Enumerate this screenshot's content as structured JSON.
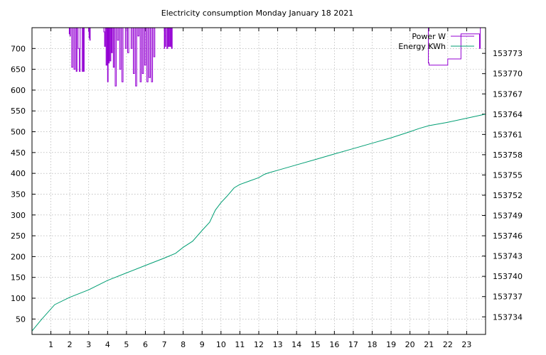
{
  "chart_data": {
    "type": "line",
    "title": "Electricity consumption Monday January 18 2021",
    "grid": true,
    "legend_position": "top-right",
    "x_axis": {
      "range": [
        0,
        24
      ],
      "ticks": [
        1,
        2,
        3,
        4,
        5,
        6,
        7,
        8,
        9,
        10,
        11,
        12,
        13,
        14,
        15,
        16,
        17,
        18,
        19,
        20,
        21,
        22,
        23
      ]
    },
    "y_left": {
      "range": [
        13,
        750
      ],
      "ticks": [
        50,
        100,
        150,
        200,
        250,
        300,
        350,
        400,
        450,
        500,
        550,
        600,
        650,
        700
      ]
    },
    "y_right": {
      "range": [
        153731.4,
        153776.8
      ],
      "ticks": [
        153734,
        153737,
        153740,
        153743,
        153746,
        153749,
        153752,
        153755,
        153758,
        153761,
        153764,
        153767,
        153770,
        153773
      ]
    },
    "series": [
      {
        "name": "Power W",
        "color": "#9400d3",
        "axis": "left",
        "x": [
          0.0,
          1.96,
          1.97,
          2.0,
          2.01,
          2.03,
          2.04,
          2.1,
          2.16,
          2.22,
          2.28,
          2.34,
          2.38,
          2.44,
          2.5,
          2.55,
          2.62,
          2.66,
          2.7,
          2.72,
          2.74,
          2.76,
          2.98,
          3.0,
          3.02,
          3.04,
          3.06,
          3.08,
          3.79,
          3.8,
          3.84,
          3.88,
          3.92,
          3.96,
          4.0,
          4.03,
          4.06,
          4.09,
          4.13,
          4.17,
          4.21,
          4.25,
          4.3,
          4.35,
          4.4,
          4.46,
          4.52,
          4.58,
          4.64,
          4.7,
          4.76,
          4.82,
          4.88,
          4.94,
          5.0,
          5.06,
          5.12,
          5.18,
          5.24,
          5.3,
          5.36,
          5.42,
          5.48,
          5.54,
          5.6,
          5.66,
          5.72,
          5.78,
          5.84,
          5.9,
          5.96,
          6.02,
          6.08,
          6.14,
          6.2,
          6.26,
          6.32,
          6.38,
          6.44,
          6.5,
          6.98,
          7.0,
          7.02,
          7.04,
          7.06,
          7.08,
          7.14,
          7.18,
          7.22,
          7.26,
          7.3,
          7.34,
          7.38,
          7.42,
          7.46,
          20.96,
          20.97,
          21.01,
          21.06,
          21.15,
          21.95,
          22.0,
          22.66,
          22.7,
          23.4,
          23.45,
          23.62,
          23.68,
          23.7,
          23.72,
          23.74,
          24.0
        ],
        "y": [
          750,
          750,
          735,
          750,
          730,
          750,
          750,
          655,
          750,
          650,
          750,
          645,
          750,
          700,
          645,
          750,
          750,
          645,
          750,
          750,
          645,
          750,
          750,
          740,
          725,
          750,
          720,
          750,
          750,
          740,
          705,
          750,
          660,
          750,
          620,
          750,
          665,
          750,
          670,
          750,
          690,
          750,
          655,
          750,
          610,
          750,
          720,
          750,
          650,
          750,
          620,
          750,
          750,
          700,
          750,
          690,
          750,
          750,
          700,
          750,
          640,
          750,
          610,
          750,
          730,
          750,
          620,
          750,
          640,
          750,
          660,
          750,
          620,
          750,
          630,
          750,
          620,
          750,
          680,
          750,
          750,
          700,
          750,
          730,
          705,
          750,
          700,
          750,
          705,
          750,
          705,
          750,
          700,
          750,
          750,
          750,
          665,
          660,
          660,
          660,
          660,
          675,
          675,
          735,
          735,
          735,
          735,
          700,
          700,
          750,
          750,
          750
        ]
      },
      {
        "name": "Energy KWh",
        "color": "#009e73",
        "axis": "right",
        "x": [
          0.0,
          0.5,
          1.2,
          2.0,
          3.0,
          4.0,
          5.0,
          6.0,
          7.0,
          7.6,
          8.0,
          8.5,
          9.0,
          9.4,
          9.7,
          10.0,
          10.3,
          10.7,
          11.0,
          11.5,
          12.0,
          12.3,
          12.5,
          13.0,
          14.0,
          15.0,
          16.0,
          17.0,
          18.0,
          19.0,
          20.0,
          20.5,
          21.0,
          22.0,
          23.0,
          24.0
        ],
        "y": [
          153731.9,
          153733.6,
          153735.8,
          153736.9,
          153738.0,
          153739.4,
          153740.5,
          153741.6,
          153742.7,
          153743.4,
          153744.3,
          153745.2,
          153746.8,
          153748.0,
          153749.8,
          153750.9,
          153751.8,
          153753.1,
          153753.6,
          153754.1,
          153754.6,
          153755.1,
          153755.3,
          153755.7,
          153756.5,
          153757.3,
          153758.1,
          153758.9,
          153759.7,
          153760.5,
          153761.4,
          153761.9,
          153762.3,
          153762.8,
          153763.4,
          153764.0
        ]
      }
    ]
  }
}
